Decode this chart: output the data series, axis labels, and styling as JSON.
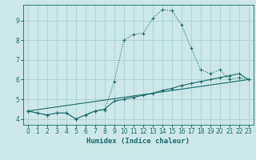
{
  "xlabel": "Humidex (Indice chaleur)",
  "background_color": "#cce8e8",
  "grid_color": "#b0d4d4",
  "line_color": "#1a6b6b",
  "xlim": [
    -0.5,
    23.5
  ],
  "ylim": [
    3.7,
    9.8
  ],
  "yticks": [
    4,
    5,
    6,
    7,
    8,
    9
  ],
  "xticks": [
    0,
    1,
    2,
    3,
    4,
    5,
    6,
    7,
    8,
    9,
    10,
    11,
    12,
    13,
    14,
    15,
    16,
    17,
    18,
    19,
    20,
    21,
    22,
    23
  ],
  "curve1_x": [
    0,
    1,
    2,
    3,
    4,
    5,
    6,
    7,
    8,
    9,
    10,
    11,
    12,
    13,
    14,
    15,
    16,
    17,
    18,
    19,
    20,
    21,
    22,
    23
  ],
  "curve1_y": [
    4.4,
    4.3,
    4.2,
    4.3,
    4.3,
    4.0,
    4.2,
    4.4,
    4.45,
    5.9,
    8.0,
    8.3,
    8.35,
    9.1,
    9.55,
    9.5,
    8.8,
    7.6,
    6.5,
    6.3,
    6.5,
    6.0,
    6.1,
    6.0
  ],
  "curve2_x": [
    0,
    1,
    2,
    3,
    4,
    5,
    6,
    7,
    8,
    9,
    10,
    11,
    12,
    13,
    14,
    15,
    16,
    17,
    18,
    19,
    20,
    21,
    22,
    23
  ],
  "curve2_y": [
    4.4,
    4.3,
    4.2,
    4.3,
    4.3,
    4.0,
    4.2,
    4.4,
    4.5,
    4.9,
    5.0,
    5.1,
    5.2,
    5.3,
    5.45,
    5.55,
    5.7,
    5.8,
    5.9,
    6.0,
    6.1,
    6.2,
    6.3,
    6.0
  ],
  "curve3_x": [
    0,
    23
  ],
  "curve3_y": [
    4.4,
    6.0
  ]
}
